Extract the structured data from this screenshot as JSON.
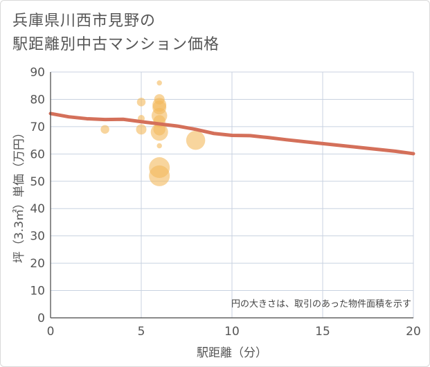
{
  "title": {
    "line1": "兵庫県川西市見野の",
    "line2": "駅距離別中古マンション価格"
  },
  "note": "円の大きさは、取引のあった物件面積を示す",
  "colors": {
    "trend": "#d4705a",
    "bubble": "#f3b95b",
    "grid": "#c8d2e0",
    "axis": "#444444"
  },
  "chart_data": {
    "type": "scatter",
    "xlabel": "駅距離（分）",
    "ylabel": "坪（3.3㎡）単価（万円）",
    "xlim": [
      0,
      20
    ],
    "ylim": [
      0,
      90
    ],
    "xticks": [
      0,
      5,
      10,
      15,
      20
    ],
    "yticks": [
      0,
      10,
      20,
      30,
      40,
      50,
      60,
      70,
      80,
      90
    ],
    "points": [
      {
        "x": 3,
        "y": 69,
        "size": 3
      },
      {
        "x": 5,
        "y": 79,
        "size": 3
      },
      {
        "x": 5,
        "y": 73,
        "size": 2
      },
      {
        "x": 5,
        "y": 69,
        "size": 4
      },
      {
        "x": 6,
        "y": 86,
        "size": 1
      },
      {
        "x": 6,
        "y": 80,
        "size": 4
      },
      {
        "x": 6,
        "y": 78,
        "size": 6
      },
      {
        "x": 6,
        "y": 77,
        "size": 6
      },
      {
        "x": 6,
        "y": 74,
        "size": 7
      },
      {
        "x": 6,
        "y": 72,
        "size": 5
      },
      {
        "x": 6,
        "y": 69,
        "size": 5
      },
      {
        "x": 6,
        "y": 68,
        "size": 8
      },
      {
        "x": 6,
        "y": 63,
        "size": 1
      },
      {
        "x": 6,
        "y": 55,
        "size": 10
      },
      {
        "x": 6,
        "y": 52,
        "size": 10
      },
      {
        "x": 8,
        "y": 65,
        "size": 9
      }
    ],
    "trend": {
      "x": [
        0,
        1,
        2,
        3,
        4,
        5,
        6,
        7,
        8,
        9,
        10,
        11,
        12,
        13,
        14,
        15,
        16,
        17,
        18,
        19,
        20
      ],
      "y": [
        74.8,
        73.6,
        72.9,
        72.6,
        72.7,
        71.8,
        71.0,
        70.2,
        69.0,
        67.5,
        66.8,
        66.7,
        66.0,
        65.2,
        64.5,
        63.8,
        63.1,
        62.4,
        61.7,
        61.0,
        60.1
      ]
    }
  }
}
